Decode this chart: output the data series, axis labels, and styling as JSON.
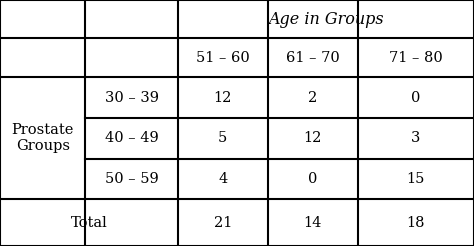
{
  "title": "Age in Groups",
  "row_header_label": "Prostate\nGroups",
  "age_groups": [
    "51 – 60",
    "61 – 70",
    "71 – 80"
  ],
  "prostate_groups": [
    "30 – 39",
    "40 – 49",
    "50 – 59"
  ],
  "data": [
    [
      12,
      2,
      0
    ],
    [
      5,
      12,
      3
    ],
    [
      4,
      0,
      15
    ]
  ],
  "totals": [
    21,
    14,
    18
  ],
  "total_label": "Total",
  "bg_color": "#ffffff",
  "text_color": "#000000",
  "line_color": "#000000",
  "font_size": 10.5,
  "title_font_size": 11.5
}
